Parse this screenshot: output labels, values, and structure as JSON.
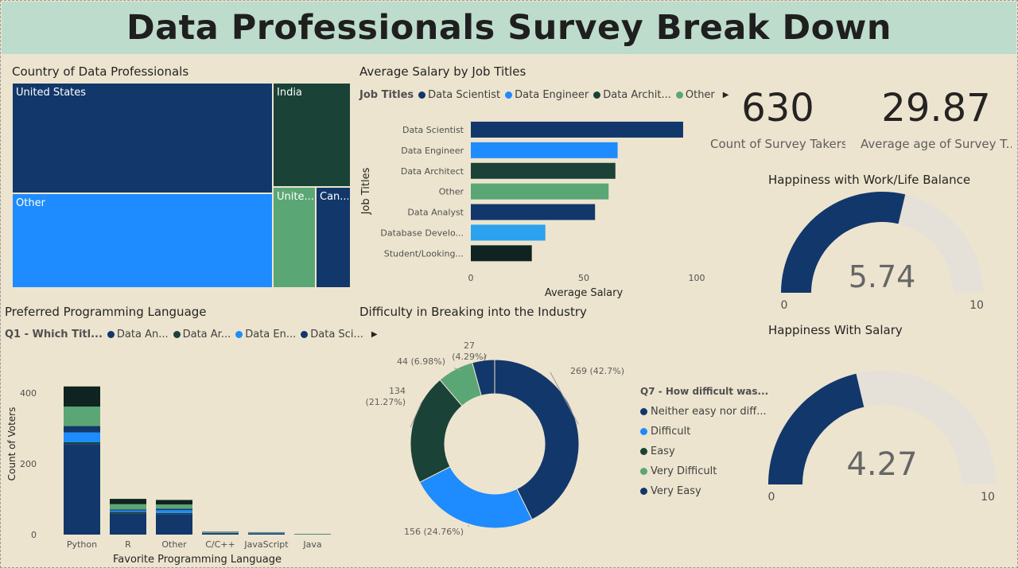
{
  "dashboard": {
    "title": "Data Professionals Survey Break Down"
  },
  "colors": {
    "background": "#ede4cf",
    "title_bar": "#bedccb",
    "dark_blue": "#12376a",
    "blue": "#1e8cff",
    "dark_green": "#1b4236",
    "green": "#5aa674",
    "bright_blue": "#2aa2f0",
    "near_black": "#0f2420",
    "gauge_track": "#e6e1d8"
  },
  "treemap": {
    "title": "Country of Data Professionals",
    "cells": [
      {
        "label": "United States",
        "color": "#12376a"
      },
      {
        "label": "Other",
        "color": "#1e8cff"
      },
      {
        "label": "India",
        "color": "#1b4236"
      },
      {
        "label": "Unite...",
        "color": "#5aa674"
      },
      {
        "label": "Can...",
        "color": "#12376a"
      }
    ]
  },
  "salary_chart": {
    "title": "Average Salary by Job Titles",
    "legend": {
      "title": "Job Titles",
      "items": [
        {
          "label": "Data Scientist",
          "color": "#12376a"
        },
        {
          "label": "Data Engineer",
          "color": "#1e8cff"
        },
        {
          "label": "Data Archit...",
          "color": "#1b4236"
        },
        {
          "label": "Other",
          "color": "#5aa674"
        }
      ]
    },
    "y_axis_title": "Job Titles",
    "x_axis_title": "Average Salary",
    "x_ticks": [
      "0",
      "50",
      "100"
    ]
  },
  "language_chart": {
    "title": "Preferred Programming Language",
    "legend": {
      "title": "Q1 - Which Titl...",
      "items": [
        {
          "label": "Data An...",
          "color": "#12376a"
        },
        {
          "label": "Data Ar...",
          "color": "#1b4236"
        },
        {
          "label": "Data En...",
          "color": "#1e8cff"
        },
        {
          "label": "Data Sci...",
          "color": "#12376a"
        }
      ]
    },
    "y_axis_title": "Count of Voters",
    "x_axis_title": "Favorite Programming Language",
    "y_ticks": [
      "0",
      "200",
      "400"
    ]
  },
  "donut_chart": {
    "title": "Difficulty in Breaking into the Industry",
    "legend": {
      "title": "Q7 - How difficult was...",
      "items": [
        {
          "label": "Neither easy nor diff...",
          "color": "#12376a"
        },
        {
          "label": "Difficult",
          "color": "#1e8cff"
        },
        {
          "label": "Easy",
          "color": "#1b4236"
        },
        {
          "label": "Very Difficult",
          "color": "#5aa674"
        },
        {
          "label": "Very Easy",
          "color": "#12376a"
        }
      ]
    },
    "slice_labels": [
      {
        "line1": "269 (42.7%)",
        "line2": ""
      },
      {
        "line1": "156 (24.76%)",
        "line2": ""
      },
      {
        "line1": "134",
        "line2": "(21.27%)"
      },
      {
        "line1": "44 (6.98%)",
        "line2": ""
      },
      {
        "line1": "27",
        "line2": "(4.29%)"
      }
    ]
  },
  "cards": [
    {
      "value": "630",
      "label": "Count of Survey Takers"
    },
    {
      "value": "29.87",
      "label": "Average age of Survey T..."
    }
  ],
  "gauges": [
    {
      "title": "Happiness with Work/Life Balance",
      "value": 5.74,
      "value_text": "5.74",
      "min": "0",
      "max": "10",
      "min_value": 0,
      "max_value": 10
    },
    {
      "title": "Happiness With Salary",
      "value": 4.27,
      "value_text": "4.27",
      "min": "0",
      "max": "10",
      "min_value": 0,
      "max_value": 10
    }
  ],
  "chart_data": [
    {
      "type": "bar",
      "orientation": "horizontal",
      "title": "Average Salary by Job Titles",
      "xlabel": "Average Salary",
      "ylabel": "Job Titles",
      "xlim": [
        0,
        100
      ],
      "categories": [
        "Data Scientist",
        "Data Engineer",
        "Data Architect",
        "Other",
        "Data Analyst",
        "Database Develo...",
        "Student/Looking..."
      ],
      "values": [
        94,
        65,
        64,
        61,
        55,
        33,
        27
      ],
      "colors": [
        "#12376a",
        "#1e8cff",
        "#1b4236",
        "#5aa674",
        "#12376a",
        "#2aa2f0",
        "#0f2420"
      ]
    },
    {
      "type": "bar",
      "stacked": true,
      "title": "Preferred Programming Language",
      "xlabel": "Favorite Programming Language",
      "ylabel": "Count of Voters",
      "ylim": [
        0,
        450
      ],
      "categories": [
        "Python",
        "R",
        "Other",
        "C/C++",
        "JavaScript",
        "Java"
      ],
      "series": [
        {
          "name": "Data An...",
          "color": "#12376a",
          "values": [
            256,
            60,
            58,
            4,
            3,
            1
          ]
        },
        {
          "name": "Data Ar...",
          "color": "#1b4236",
          "values": [
            5,
            4,
            3,
            1,
            1,
            0
          ]
        },
        {
          "name": "Data En...",
          "color": "#1e8cff",
          "values": [
            28,
            4,
            8,
            1,
            1,
            0
          ]
        },
        {
          "name": "Data Sci...",
          "color": "#12376a",
          "values": [
            18,
            3,
            4,
            0,
            1,
            0
          ]
        },
        {
          "name": "",
          "color": "#5aa674",
          "values": [
            55,
            15,
            12,
            1,
            1,
            1
          ]
        },
        {
          "name": "",
          "color": "#0f2420",
          "values": [
            57,
            15,
            13,
            1,
            0,
            0
          ]
        }
      ]
    },
    {
      "type": "pie",
      "donut": true,
      "title": "Difficulty in Breaking into the Industry",
      "labels": [
        "Neither easy nor diff...",
        "Difficult",
        "Easy",
        "Very Difficult",
        "Very Easy"
      ],
      "values": [
        269,
        156,
        134,
        44,
        27
      ],
      "percent": [
        42.7,
        24.76,
        21.27,
        6.98,
        4.29
      ],
      "colors": [
        "#12376a",
        "#1e8cff",
        "#1b4236",
        "#5aa674",
        "#12376a"
      ]
    }
  ]
}
